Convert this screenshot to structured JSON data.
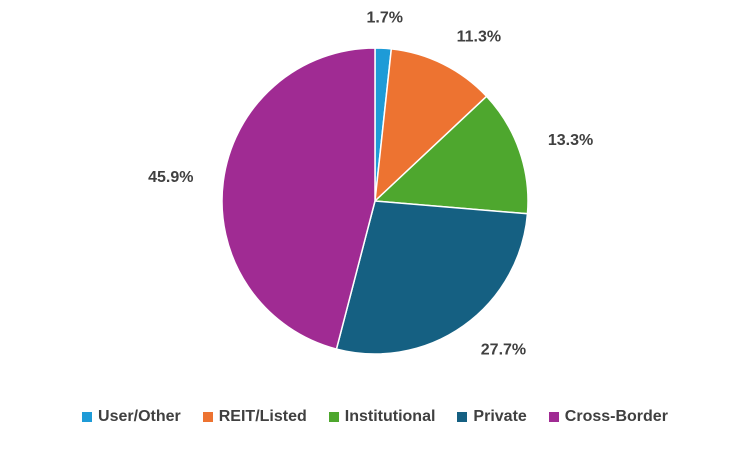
{
  "chart_data": {
    "type": "pie",
    "title": "",
    "legend_position": "bottom",
    "slices": [
      {
        "name": "User/Other",
        "value": 1.7,
        "label": "1.7%",
        "color": "#1E9BD7"
      },
      {
        "name": "REIT/Listed",
        "value": 11.3,
        "label": "11.3%",
        "color": "#ED7331"
      },
      {
        "name": "Institutional",
        "value": 13.3,
        "label": "13.3%",
        "color": "#4EA72E"
      },
      {
        "name": "Private",
        "value": 27.7,
        "label": "27.7%",
        "color": "#156082"
      },
      {
        "name": "Cross-Border",
        "value": 45.9,
        "label": "45.9%",
        "color": "#A02B93"
      }
    ]
  }
}
